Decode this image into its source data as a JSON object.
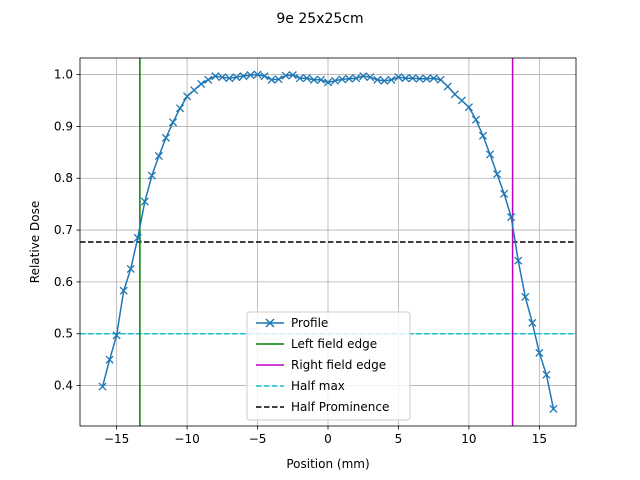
{
  "chart_data": {
    "type": "line",
    "title": "9e 25x25cm",
    "xlabel": "Position (mm)",
    "ylabel": "Relative Dose",
    "xlim": [
      -17.6,
      17.6
    ],
    "ylim": [
      0.322,
      1.032
    ],
    "xticks": [
      -15,
      -10,
      -5,
      0,
      5,
      10,
      15
    ],
    "yticks": [
      0.4,
      0.5,
      0.6,
      0.7,
      0.8,
      0.9,
      1.0
    ],
    "xtick_labels": [
      "−15",
      "−10",
      "−5",
      "0",
      "5",
      "10",
      "15"
    ],
    "ytick_labels": [
      "0.4",
      "0.5",
      "0.6",
      "0.7",
      "0.8",
      "0.9",
      "1.0"
    ],
    "grid": true,
    "legend_position": "lower center",
    "profile": {
      "name": "Profile",
      "color": "#1f77b4",
      "marker": "x",
      "x": [
        -16.0,
        -15.5,
        -15.0,
        -14.5,
        -14.0,
        -13.5,
        -13.0,
        -12.5,
        -12.0,
        -11.5,
        -11.0,
        -10.5,
        -10.0,
        -9.5,
        -9.0,
        -8.5,
        -8.0,
        -7.5,
        -7.0,
        -6.5,
        -6.0,
        -5.5,
        -5.0,
        -4.5,
        -4.0,
        -3.5,
        -3.0,
        -2.5,
        -2.0,
        -1.5,
        -1.0,
        -0.5,
        0.0,
        0.5,
        1.0,
        1.5,
        2.0,
        2.5,
        3.0,
        3.5,
        4.0,
        4.5,
        5.0,
        5.5,
        6.0,
        6.5,
        7.0,
        7.5,
        8.0,
        8.5,
        9.0,
        9.5,
        10.0,
        10.5,
        11.0,
        11.5,
        12.0,
        12.5,
        13.0,
        13.5,
        14.0,
        14.5,
        15.0,
        15.5,
        16.0
      ],
      "y": [
        0.398,
        0.45,
        0.497,
        0.583,
        0.625,
        0.685,
        0.755,
        0.805,
        0.843,
        0.878,
        0.908,
        0.935,
        0.958,
        0.97,
        0.982,
        0.99,
        0.997,
        0.995,
        0.993,
        0.995,
        0.997,
        0.999,
        1.0,
        0.997,
        0.99,
        0.991,
        0.998,
        0.999,
        0.993,
        0.993,
        0.99,
        0.99,
        0.985,
        0.988,
        0.991,
        0.992,
        0.993,
        0.997,
        0.995,
        0.99,
        0.988,
        0.99,
        0.995,
        0.993,
        0.993,
        0.992,
        0.992,
        0.993,
        0.99,
        0.977,
        0.962,
        0.95,
        0.937,
        0.913,
        0.882,
        0.846,
        0.808,
        0.77,
        0.725,
        0.641,
        0.571,
        0.521,
        0.463,
        0.421,
        0.355
      ]
    },
    "left_field_edge": {
      "name": "Left field edge",
      "x": -13.35,
      "color": "#008000"
    },
    "right_field_edge": {
      "name": "Right field edge",
      "x": 13.1,
      "color": "#bf00bf"
    },
    "half_max": {
      "name": "Half max",
      "y": 0.5,
      "color": "#17becf"
    },
    "half_prominence": {
      "name": "Half Prominence",
      "y": 0.677,
      "color": "#000000"
    }
  }
}
